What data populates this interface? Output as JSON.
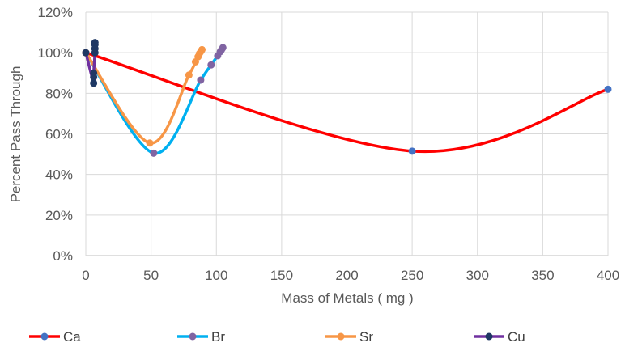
{
  "chart_data": {
    "type": "line",
    "smooth": true,
    "xlabel": "Mass of Metals ( mg )",
    "ylabel": "Percent Pass Through",
    "xlim": [
      0,
      400
    ],
    "ylim": [
      0,
      120
    ],
    "x_ticks": [
      0,
      50,
      100,
      150,
      200,
      250,
      300,
      350,
      400
    ],
    "y_ticks": [
      0,
      20,
      40,
      60,
      80,
      100,
      120
    ],
    "x_tick_labels": [
      "0",
      "50",
      "100",
      "150",
      "200",
      "250",
      "300",
      "350",
      "400"
    ],
    "y_tick_labels": [
      "0%",
      "20%",
      "40%",
      "60%",
      "80%",
      "100%",
      "120%"
    ],
    "grid": true,
    "legend_position": "bottom",
    "series": [
      {
        "name": "Ca",
        "line_color": "#ff0000",
        "marker_color": "#4472c4",
        "points": [
          [
            0,
            100
          ],
          [
            250,
            51.5
          ],
          [
            400,
            82
          ]
        ]
      },
      {
        "name": "Br",
        "line_color": "#00b0f0",
        "marker_color": "#8064a2",
        "points": [
          [
            0,
            100
          ],
          [
            52,
            50.5
          ],
          [
            88,
            86.5
          ],
          [
            96,
            94
          ],
          [
            101,
            98.5
          ],
          [
            103,
            100.5
          ],
          [
            104,
            101.5
          ],
          [
            105,
            102.5
          ]
        ]
      },
      {
        "name": "Sr",
        "line_color": "#f79646",
        "marker_color": "#f79646",
        "points": [
          [
            0,
            100
          ],
          [
            49,
            55.5
          ],
          [
            79,
            89
          ],
          [
            84,
            95.5
          ],
          [
            86,
            98
          ],
          [
            87,
            99.5
          ],
          [
            88,
            100.5
          ],
          [
            89,
            101.5
          ]
        ]
      },
      {
        "name": "Cu",
        "line_color": "#7030a0",
        "marker_color": "#1f3864",
        "points": [
          [
            0,
            100
          ],
          [
            6,
            85
          ],
          [
            6,
            88
          ],
          [
            6,
            90
          ],
          [
            7,
            100
          ],
          [
            7,
            102
          ],
          [
            7,
            104
          ],
          [
            7,
            105
          ]
        ]
      }
    ]
  }
}
